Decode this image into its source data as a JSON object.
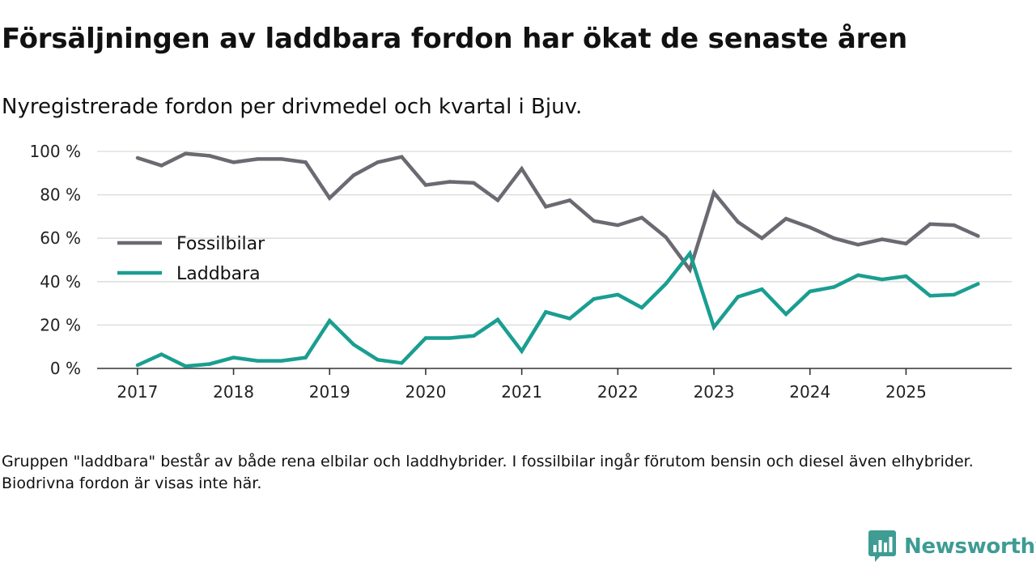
{
  "title": "Försäljningen av laddbara fordon har ökat de senaste åren",
  "subtitle": "Nyregistrerade fordon per drivmedel och kvartal i Bjuv.",
  "note": "Gruppen \"laddbara\" består av både rena elbilar och laddhybrider. I fossilbilar ingår förutom bensin och diesel även elhybrider. Biodrivna fordon är visas inte här.",
  "brand": {
    "name": "Newsworthy",
    "icon": "newsworthy-logo-icon"
  },
  "colors": {
    "fossil": "#6b6a72",
    "laddbara": "#1a9e91",
    "grid": "#d9d9d9",
    "axis": "#333333"
  },
  "chart_data": {
    "type": "line",
    "title": "Försäljningen av laddbara fordon har ökat de senaste åren",
    "subtitle": "Nyregistrerade fordon per drivmedel och kvartal i Bjuv.",
    "xlabel": "",
    "ylabel": "",
    "x": [
      2017.0,
      2017.25,
      2017.5,
      2017.75,
      2018.0,
      2018.25,
      2018.5,
      2018.75,
      2019.0,
      2019.25,
      2019.5,
      2019.75,
      2020.0,
      2020.25,
      2020.5,
      2020.75,
      2021.0,
      2021.25,
      2021.5,
      2021.75,
      2022.0,
      2022.25,
      2022.5,
      2022.75,
      2023.0,
      2023.25,
      2023.5,
      2023.75,
      2024.0,
      2024.25,
      2024.5,
      2024.75,
      2025.0,
      2025.25,
      2025.5,
      2025.75
    ],
    "xlim": [
      2016.58,
      2026.1
    ],
    "xticks": [
      2017,
      2018,
      2019,
      2020,
      2021,
      2022,
      2023,
      2024,
      2025
    ],
    "xtick_labels": [
      "2017",
      "2018",
      "2019",
      "2020",
      "2021",
      "2022",
      "2023",
      "2024",
      "2025"
    ],
    "ylim": [
      0,
      100
    ],
    "yticks": [
      0,
      20,
      40,
      60,
      80,
      100
    ],
    "ytick_labels": [
      "0 %",
      "20 %",
      "40 %",
      "60 %",
      "80 %",
      "100 %"
    ],
    "grid": true,
    "legend_position": "center-left",
    "series": [
      {
        "name": "Fossilbilar",
        "color": "#6b6a72",
        "values": [
          97,
          93.5,
          99,
          98,
          95,
          96.5,
          96.5,
          95,
          78.5,
          89,
          95,
          97.5,
          84.5,
          86,
          85.5,
          77.5,
          92,
          74.5,
          77.5,
          68,
          66,
          69.5,
          60.5,
          45.5,
          81,
          67.5,
          60,
          69,
          65,
          60,
          57,
          59.5,
          57.5,
          66.5,
          66,
          61
        ]
      },
      {
        "name": "Laddbara",
        "color": "#1a9e91",
        "values": [
          1.5,
          6.5,
          1,
          2,
          5,
          3.5,
          3.5,
          5,
          22,
          11,
          4,
          2.5,
          14,
          14,
          15,
          22.5,
          8,
          26,
          23,
          32,
          34,
          28,
          39,
          53,
          19,
          33,
          36.5,
          25,
          35.5,
          37.5,
          43,
          41,
          42.5,
          33.5,
          34,
          39
        ]
      }
    ]
  }
}
